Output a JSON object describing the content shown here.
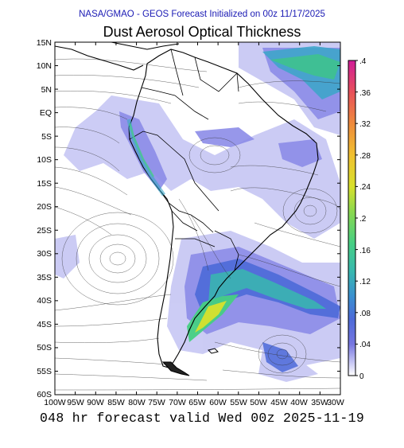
{
  "header": {
    "subtitle": "NASA/GMAO - GEOS Forecast Initialized on 00z 11/17/2025",
    "title": "Dust Aerosol Optical Thickness",
    "footer": "048 hr forecast valid Wed 00z 2025-11-19"
  },
  "map": {
    "lat_labels": [
      "15N",
      "10N",
      "5N",
      "EQ",
      "5S",
      "10S",
      "15S",
      "20S",
      "25S",
      "30S",
      "35S",
      "40S",
      "45S",
      "50S",
      "55S",
      "60S"
    ],
    "lon_labels": [
      "100W",
      "95W",
      "90W",
      "85W",
      "80W",
      "75W",
      "70W",
      "65W",
      "60W",
      "55W",
      "50W",
      "45W",
      "40W",
      "35W",
      "30W"
    ],
    "lat_range": [
      -60,
      15
    ],
    "lon_range": [
      -100,
      -30
    ]
  },
  "colorbar": {
    "ticks": [
      ".4",
      ".36",
      ".32",
      ".28",
      ".24",
      ".2",
      ".16",
      ".12",
      ".08",
      ".04",
      "0"
    ],
    "range": [
      0,
      0.4
    ],
    "colors": [
      "#ffffff",
      "#c9c9f4",
      "#9b9bea",
      "#7676e0",
      "#4c6ad8",
      "#3a8fd0",
      "#38b8b0",
      "#46cf83",
      "#8ad84e",
      "#d8e02c",
      "#f0c030",
      "#ee8a3c",
      "#e8505a",
      "#e02888",
      "#c81aa0"
    ]
  }
}
